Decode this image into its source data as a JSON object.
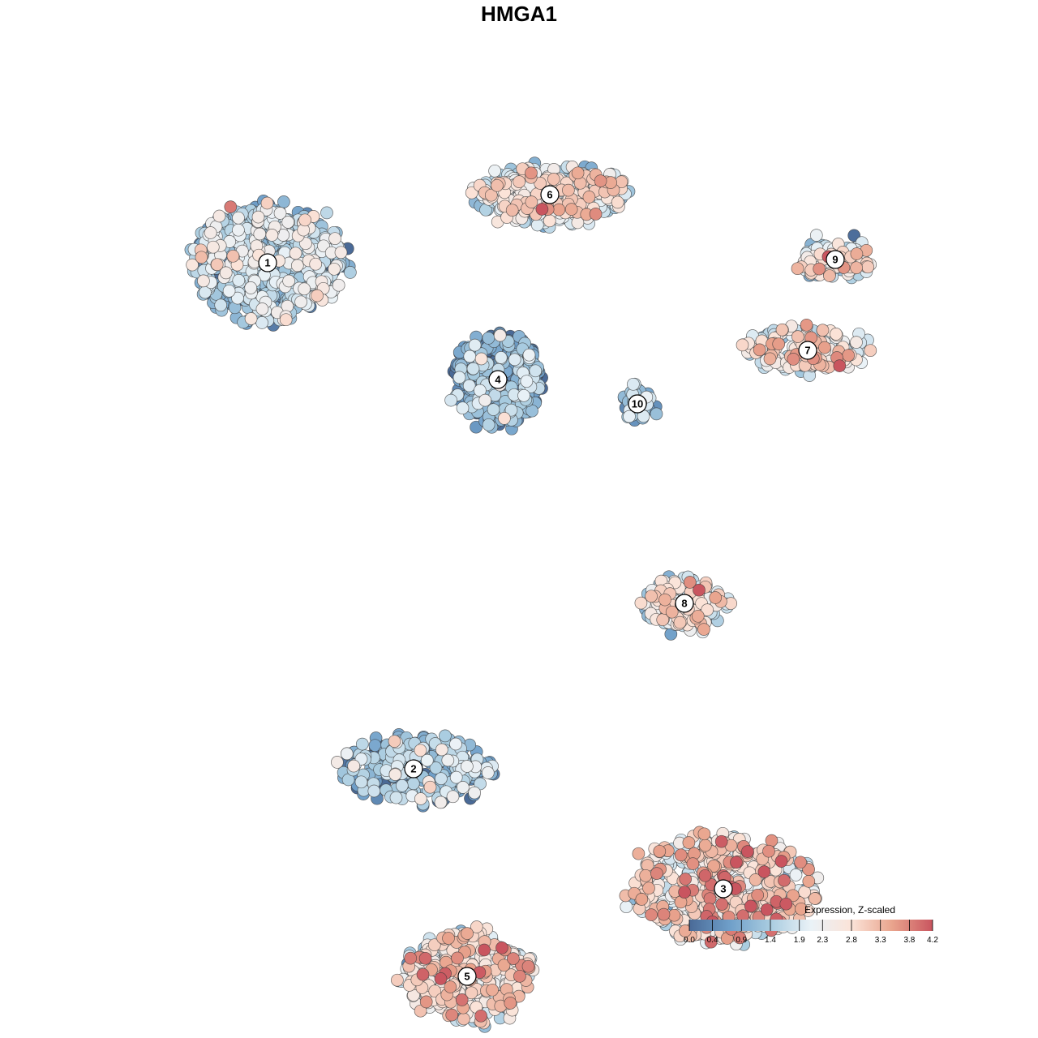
{
  "chart_data": {
    "type": "scatter",
    "title": "HMGA1",
    "legend": {
      "title": "Expression, Z-scaled",
      "ticks": [
        0.0,
        0.4,
        0.9,
        1.4,
        1.9,
        2.3,
        2.8,
        3.3,
        3.8,
        4.2
      ],
      "tick_labels": [
        "0.0",
        "0.4",
        "0.9",
        "1.4",
        "1.9",
        "2.3",
        "2.8",
        "3.3",
        "3.8",
        "4.2"
      ],
      "range": [
        0.0,
        4.2
      ],
      "placement": "bottom-right",
      "colors": [
        "#4a6a97",
        "#6f9fc9",
        "#a9cce0",
        "#eaf2f7",
        "#fbe3d8",
        "#e9a48d",
        "#c9555f"
      ]
    },
    "grid": false,
    "axes_visible": false,
    "clusters": [
      {
        "label": "1",
        "x": -3.1,
        "y": 3.16,
        "mean": 1.3,
        "spread": [
          1.9,
          1.4
        ],
        "n": 700
      },
      {
        "label": "2",
        "x": -1.3,
        "y": -3.08,
        "mean": 1.2,
        "spread": [
          1.9,
          0.8
        ],
        "n": 260
      },
      {
        "label": "3",
        "x": 2.52,
        "y": -4.56,
        "mean": 2.6,
        "spread": [
          2.3,
          1.3
        ],
        "n": 520
      },
      {
        "label": "4",
        "x": -0.26,
        "y": 1.72,
        "mean": 0.6,
        "spread": [
          1.1,
          1.1
        ],
        "n": 420
      },
      {
        "label": "5",
        "x": -0.64,
        "y": -5.64,
        "mean": 2.2,
        "spread": [
          1.6,
          1.1
        ],
        "n": 480
      },
      {
        "label": "6",
        "x": 0.38,
        "y": 4.0,
        "mean": 2.1,
        "spread": [
          1.8,
          0.7
        ],
        "n": 420
      },
      {
        "label": "7",
        "x": 3.56,
        "y": 2.08,
        "mean": 2.3,
        "spread": [
          1.6,
          0.5
        ],
        "n": 170
      },
      {
        "label": "8",
        "x": 2.04,
        "y": -1.04,
        "mean": 2.1,
        "spread": [
          1.0,
          0.6
        ],
        "n": 170
      },
      {
        "label": "9",
        "x": 3.9,
        "y": 3.2,
        "mean": 2.2,
        "spread": [
          0.9,
          0.4
        ],
        "n": 110
      },
      {
        "label": "10",
        "x": 1.46,
        "y": 1.42,
        "mean": 0.9,
        "spread": [
          0.3,
          0.4
        ],
        "n": 60
      }
    ]
  }
}
